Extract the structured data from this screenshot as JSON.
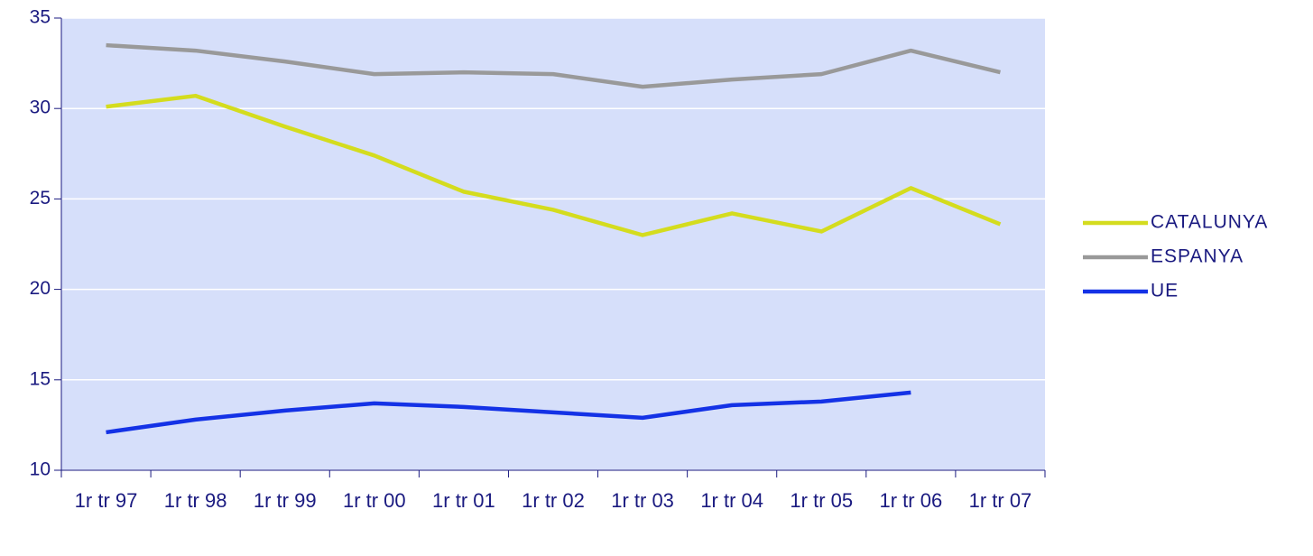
{
  "chart_data": {
    "type": "line",
    "categories": [
      "1r tr 97",
      "1r tr 98",
      "1r tr 99",
      "1r tr 00",
      "1r tr 01",
      "1r tr 02",
      "1r tr 03",
      "1r tr 04",
      "1r tr 05",
      "1r tr 06",
      "1r tr 07"
    ],
    "series": [
      {
        "name": "CATALUNYA",
        "color": "#d4dc1e",
        "values": [
          30.1,
          30.7,
          29.0,
          27.4,
          25.4,
          24.4,
          23.0,
          24.2,
          23.2,
          25.6,
          23.6
        ]
      },
      {
        "name": "ESPANYA",
        "color": "#999999",
        "values": [
          33.5,
          33.2,
          32.6,
          31.9,
          32.0,
          31.9,
          31.2,
          31.6,
          31.9,
          33.2,
          32.0
        ]
      },
      {
        "name": "UE",
        "color": "#1432e6",
        "values": [
          12.1,
          12.8,
          13.3,
          13.7,
          13.5,
          13.2,
          12.9,
          13.6,
          13.8,
          14.3,
          null
        ]
      }
    ],
    "ylim": [
      10,
      35
    ],
    "yticks": [
      10,
      15,
      20,
      25,
      30,
      35
    ],
    "grid": true,
    "legend": "right"
  }
}
